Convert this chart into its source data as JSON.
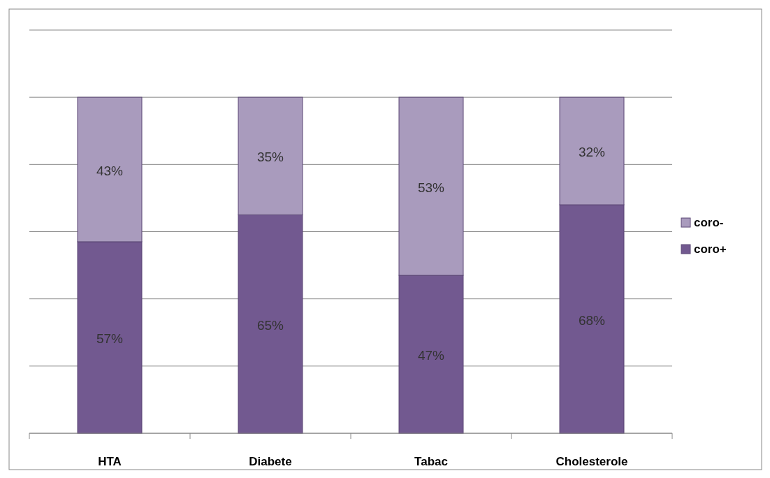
{
  "chart_data": {
    "type": "bar",
    "stacked": true,
    "categories": [
      "HTA",
      "Diabete",
      "Tabac",
      "Cholesterole"
    ],
    "series": [
      {
        "name": "coro+",
        "color": "#725990",
        "values": [
          57,
          65,
          47,
          68
        ],
        "value_labels": [
          "57%",
          "65%",
          "47%",
          "68%"
        ]
      },
      {
        "name": "coro-",
        "color": "#a99bbd",
        "values": [
          43,
          35,
          53,
          32
        ],
        "value_labels": [
          "43%",
          "35%",
          "53%",
          "32%"
        ]
      }
    ],
    "ylim": [
      0,
      120
    ],
    "yticks": [
      {
        "value": 0,
        "label": null
      },
      {
        "value": 20,
        "label": null
      },
      {
        "value": 40,
        "label": null
      },
      {
        "value": 60,
        "label": null
      },
      {
        "value": 80,
        "label": null
      },
      {
        "value": 100,
        "label": null
      },
      {
        "value": 120,
        "label": null
      }
    ],
    "grid": "y",
    "tick_labels": "x",
    "legend": "right"
  }
}
